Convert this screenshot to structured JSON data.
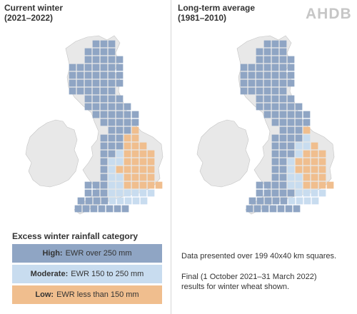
{
  "panels": [
    {
      "title_line1": "Current winter",
      "title_line2": "(2021–2022)"
    },
    {
      "title_line1": "Long-term average",
      "title_line2": "(1981–2010)"
    }
  ],
  "logo": "AHDB",
  "legend": {
    "title": "Excess winter rainfall category",
    "items": [
      {
        "level": "High:",
        "text": "EWR over 250 mm",
        "color": "#8fa5c4"
      },
      {
        "level": "Moderate:",
        "text": "EWR 150 to 250 mm",
        "color": "#c8dcef"
      },
      {
        "level": "Low:",
        "text": "EWR less than 150 mm",
        "color": "#f0be8e"
      }
    ]
  },
  "notes": {
    "line1": "Data presented over 199 40x40 km squares.",
    "line2a": "Final (1 October 2021–31 March 2022)",
    "line2b": "results for winter wheat shown."
  },
  "colors": {
    "land": "#e8e8e8",
    "land_border": "#c4c4c4"
  }
}
